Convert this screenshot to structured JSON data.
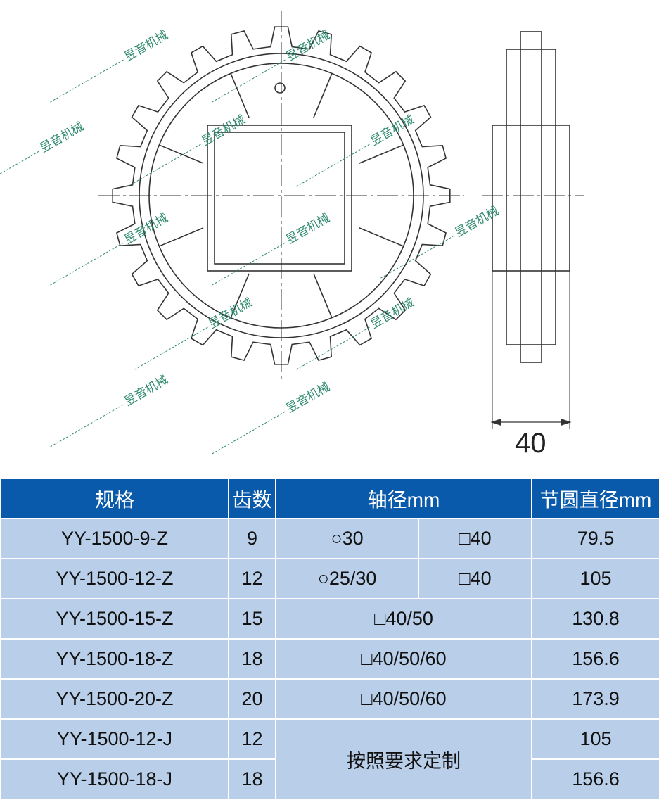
{
  "drawing": {
    "dimension_label": "40",
    "line_color": "#333333"
  },
  "watermark": "昱音机械",
  "table": {
    "headers": [
      "规格",
      "齿数",
      "轴径mm",
      "节圆直径mm"
    ],
    "rows": [
      {
        "model": "YY-1500-9-Z",
        "teeth": "9",
        "bore_round": "○30",
        "bore_square": "□40",
        "pitch": "79.5"
      },
      {
        "model": "YY-1500-12-Z",
        "teeth": "12",
        "bore_round": "○25/30",
        "bore_square": "□40",
        "pitch": "105"
      },
      {
        "model": "YY-1500-15-Z",
        "teeth": "15",
        "bore": "□40/50",
        "pitch": "130.8"
      },
      {
        "model": "YY-1500-18-Z",
        "teeth": "18",
        "bore": "□40/50/60",
        "pitch": "156.6"
      },
      {
        "model": "YY-1500-20-Z",
        "teeth": "20",
        "bore": "□40/50/60",
        "pitch": "173.9"
      },
      {
        "model": "YY-1500-12-J",
        "teeth": "12",
        "bore": "按照要求定制",
        "pitch": "105"
      },
      {
        "model": "YY-1500-18-J",
        "teeth": "18",
        "pitch": "156.6"
      }
    ]
  },
  "colors": {
    "header_bg": "#0a5aab",
    "row_bg": "#b9cee9"
  }
}
